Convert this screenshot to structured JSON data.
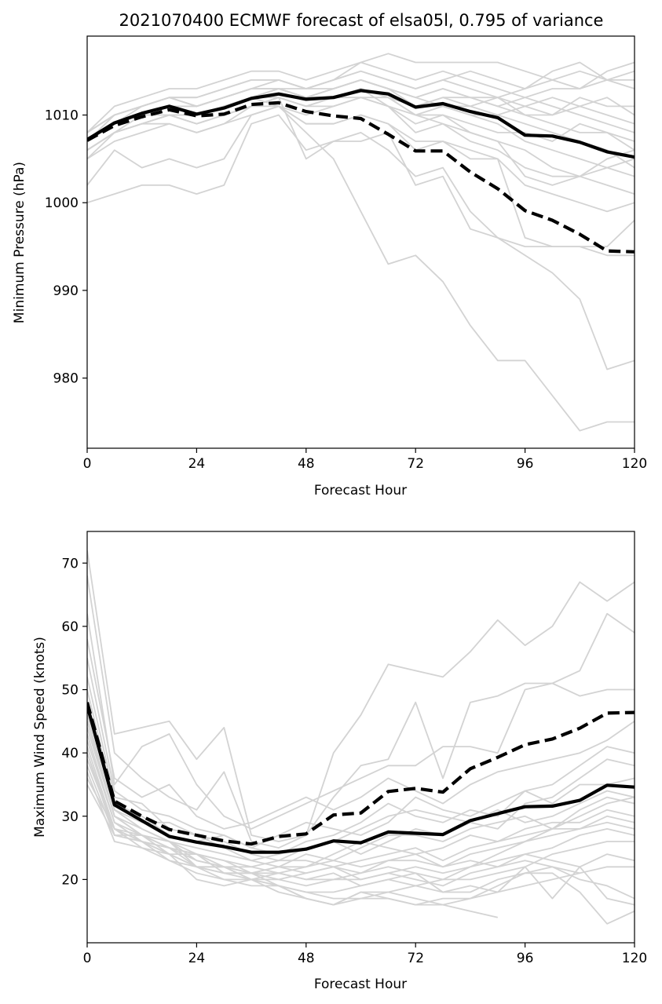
{
  "chart_data": [
    {
      "type": "line",
      "title": "2021070400 ECMWF forecast of elsa05l, 0.795 of variance",
      "xlabel": "Forecast Hour",
      "ylabel": "Minimum Pressure (hPa)",
      "xlim": [
        0,
        120
      ],
      "ylim": [
        972,
        1019
      ],
      "xticks": [
        0,
        24,
        48,
        72,
        96,
        120
      ],
      "yticks": [
        980,
        990,
        1000,
        1010
      ],
      "grid": false,
      "colors": {
        "member": "#d3d3d3",
        "mean": "#000000"
      },
      "x": [
        0,
        6,
        12,
        18,
        24,
        30,
        36,
        42,
        48,
        54,
        60,
        66,
        72,
        78,
        84,
        90,
        96,
        102,
        108,
        114,
        120
      ],
      "mean_series": [
        {
          "style": "solid",
          "values": [
            1007.2,
            1009.1,
            1010.2,
            1011.0,
            1010.1,
            1010.8,
            1011.9,
            1012.4,
            1011.8,
            1012.0,
            1012.8,
            1012.4,
            1010.9,
            1011.3,
            1010.4,
            1009.7,
            1007.7,
            1007.6,
            1006.9,
            1005.8,
            1005.2
          ]
        },
        {
          "style": "dashed",
          "values": [
            1007.1,
            1008.8,
            1009.8,
            1010.6,
            1009.9,
            1010.1,
            1011.2,
            1011.4,
            1010.4,
            1009.9,
            1009.6,
            1007.8,
            1005.9,
            1005.9,
            1003.5,
            1001.6,
            999.1,
            998.0,
            996.4,
            994.5,
            994.4
          ]
        }
      ],
      "members": [
        [
          1000,
          1001,
          1002,
          1002,
          1001,
          1002,
          1009,
          1010,
          1006,
          1007,
          1008,
          1006,
          1003,
          1004,
          999,
          996,
          994,
          992,
          989,
          981,
          982
        ],
        [
          1002,
          1006,
          1004,
          1005,
          1004,
          1005,
          1010,
          1011,
          1008,
          1005,
          999,
          993,
          994,
          991,
          986,
          982,
          982,
          978,
          974,
          975,
          975
        ],
        [
          1005,
          1008,
          1009,
          1010,
          1009,
          1010,
          1011,
          1012,
          1005,
          1007,
          1007,
          1008,
          1002,
          1003,
          997,
          996,
          995,
          995,
          995,
          994,
          994
        ],
        [
          1006,
          1008,
          1009,
          1010,
          1010,
          1011,
          1012,
          1011,
          1009,
          1009,
          1010,
          1009,
          1007,
          1007,
          1006,
          1005,
          996,
          995,
          995,
          995,
          998
        ],
        [
          1007,
          1009,
          1010,
          1011,
          1011,
          1012,
          1013,
          1013,
          1012,
          1013,
          1014,
          1013,
          1012,
          1011,
          1010,
          1009,
          1007,
          1006,
          1005,
          1004,
          1003
        ],
        [
          1007,
          1010,
          1011,
          1012,
          1012,
          1013,
          1014,
          1014,
          1013,
          1014,
          1016,
          1015,
          1014,
          1015,
          1014,
          1013,
          1012,
          1011,
          1010,
          1009,
          1008
        ],
        [
          1008,
          1011,
          1012,
          1013,
          1013,
          1014,
          1015,
          1015,
          1014,
          1015,
          1016,
          1017,
          1016,
          1016,
          1016,
          1016,
          1015,
          1014,
          1015,
          1014,
          1014
        ],
        [
          1008,
          1010,
          1011,
          1012,
          1011,
          1012,
          1013,
          1014,
          1013,
          1014,
          1015,
          1014,
          1013,
          1014,
          1013,
          1012,
          1011,
          1010,
          1011,
          1012,
          1010
        ],
        [
          1006,
          1008,
          1009,
          1010,
          1009,
          1010,
          1011,
          1012,
          1011,
          1011,
          1012,
          1012,
          1011,
          1012,
          1012,
          1011,
          1010,
          1009,
          1008,
          1008,
          1007
        ],
        [
          1007,
          1009,
          1010,
          1011,
          1010,
          1011,
          1012,
          1013,
          1012,
          1012,
          1013,
          1012,
          1010,
          1009,
          1008,
          1007,
          1006,
          1004,
          1003,
          1002,
          1001
        ],
        [
          1006,
          1008,
          1010,
          1010,
          1010,
          1011,
          1012,
          1013,
          1012,
          1013,
          1014,
          1013,
          1012,
          1013,
          1012,
          1012,
          1013,
          1014,
          1013,
          1015,
          1016
        ],
        [
          1007,
          1009,
          1011,
          1012,
          1011,
          1012,
          1013,
          1013,
          1013,
          1014,
          1015,
          1014,
          1013,
          1014,
          1015,
          1014,
          1013,
          1015,
          1016,
          1014,
          1013
        ],
        [
          1008,
          1010,
          1011,
          1012,
          1012,
          1013,
          1014,
          1014,
          1013,
          1013,
          1014,
          1013,
          1011,
          1012,
          1011,
          1010,
          1009,
          1008,
          1007,
          1006,
          1004
        ],
        [
          1006,
          1008,
          1009,
          1009,
          1008,
          1009,
          1010,
          1011,
          1010,
          1011,
          1012,
          1011,
          1008,
          1009,
          1007,
          1006,
          1004,
          1003,
          1003,
          1004,
          1005
        ],
        [
          1005,
          1007,
          1008,
          1009,
          1008,
          1009,
          1011,
          1011,
          1009,
          1009,
          1010,
          1009,
          1006,
          1007,
          1005,
          1005,
          1002,
          1001,
          1000,
          999,
          1000
        ],
        [
          1007,
          1009,
          1010,
          1011,
          1010,
          1011,
          1012,
          1012,
          1011,
          1012,
          1013,
          1012,
          1011,
          1011,
          1010,
          1010,
          1011,
          1012,
          1011,
          1010,
          1009
        ],
        [
          1008,
          1010,
          1011,
          1012,
          1011,
          1012,
          1013,
          1013,
          1012,
          1012,
          1013,
          1011,
          1010,
          1011,
          1011,
          1012,
          1010,
          1010,
          1012,
          1011,
          1011
        ],
        [
          1007,
          1009,
          1010,
          1011,
          1010,
          1011,
          1012,
          1013,
          1012,
          1012,
          1012,
          1011,
          1009,
          1010,
          1009,
          1008,
          1008,
          1007,
          1009,
          1008,
          1006
        ],
        [
          1006,
          1008,
          1009,
          1010,
          1009,
          1010,
          1011,
          1012,
          1011,
          1012,
          1013,
          1012,
          1010,
          1010,
          1008,
          1007,
          1003,
          1002,
          1003,
          1005,
          1006
        ],
        [
          1007,
          1009,
          1010,
          1011,
          1011,
          1012,
          1013,
          1013,
          1012,
          1013,
          1014,
          1013,
          1012,
          1013,
          1012,
          1011,
          1012,
          1013,
          1013,
          1014,
          1015
        ]
      ]
    },
    {
      "type": "line",
      "title": "",
      "xlabel": "Forecast Hour",
      "ylabel": "Maximum Wind Speed (knots)",
      "xlim": [
        0,
        120
      ],
      "ylim": [
        10,
        75
      ],
      "xticks": [
        0,
        24,
        48,
        72,
        96,
        120
      ],
      "yticks": [
        20,
        30,
        40,
        50,
        60,
        70
      ],
      "grid": false,
      "colors": {
        "member": "#d3d3d3",
        "mean": "#000000"
      },
      "x": [
        0,
        6,
        12,
        18,
        24,
        30,
        36,
        42,
        48,
        54,
        60,
        66,
        72,
        78,
        84,
        90,
        96,
        102,
        108,
        114,
        120
      ],
      "mean_series": [
        {
          "style": "solid",
          "values": [
            47.5,
            31.8,
            29.3,
            26.8,
            25.9,
            25.2,
            24.3,
            24.3,
            24.8,
            26.1,
            25.8,
            27.5,
            27.3,
            27.1,
            29.3,
            30.4,
            31.5,
            31.6,
            32.5,
            34.9,
            34.6
          ]
        },
        {
          "style": "dashed",
          "values": [
            48.0,
            32.4,
            30.0,
            27.9,
            27.0,
            26.1,
            25.6,
            26.8,
            27.2,
            30.2,
            30.5,
            33.9,
            34.4,
            33.8,
            37.5,
            39.3,
            41.3,
            42.2,
            43.9,
            46.3,
            46.4
          ]
        }
      ],
      "members": [
        [
          72,
          43,
          44,
          45,
          39,
          44,
          27,
          26,
          27,
          40,
          46,
          54,
          53,
          52,
          56,
          61,
          57,
          60,
          67,
          64,
          67
        ],
        [
          68,
          40,
          36,
          33,
          31,
          37,
          26,
          25,
          27,
          33,
          38,
          39,
          48,
          36,
          48,
          49,
          51,
          51,
          53,
          62,
          59
        ],
        [
          62,
          35,
          41,
          43,
          35,
          30,
          28,
          30,
          32,
          34,
          36,
          38,
          38,
          41,
          41,
          40,
          50,
          51,
          49,
          50,
          50
        ],
        [
          58,
          36,
          33,
          35,
          30,
          28,
          29,
          31,
          33,
          31,
          33,
          36,
          34,
          32,
          35,
          37,
          38,
          39,
          40,
          42,
          45
        ],
        [
          55,
          34,
          31,
          30,
          28,
          27,
          25,
          24,
          26,
          27,
          29,
          32,
          30,
          29,
          31,
          30,
          34,
          35,
          38,
          41,
          40
        ],
        [
          52,
          33,
          32,
          28,
          27,
          26,
          24,
          23,
          25,
          26,
          28,
          30,
          31,
          30,
          29,
          28,
          32,
          33,
          36,
          39,
          38
        ],
        [
          50,
          32,
          30,
          27,
          26,
          27,
          25,
          27,
          29,
          28,
          27,
          29,
          33,
          31,
          30,
          32,
          34,
          32,
          35,
          35,
          36
        ],
        [
          48,
          31,
          29,
          29,
          27,
          25,
          23,
          22,
          24,
          23,
          25,
          27,
          27,
          26,
          28,
          29,
          30,
          28,
          31,
          33,
          32
        ],
        [
          47,
          31,
          28,
          26,
          24,
          23,
          22,
          21,
          22,
          24,
          26,
          25,
          24,
          25,
          27,
          26,
          28,
          29,
          29,
          31,
          30
        ],
        [
          46,
          30,
          27,
          25,
          24,
          22,
          21,
          20,
          21,
          22,
          23,
          24,
          25,
          23,
          25,
          26,
          27,
          28,
          28,
          30,
          29
        ],
        [
          45,
          30,
          28,
          26,
          25,
          24,
          23,
          24,
          25,
          26,
          24,
          26,
          28,
          27,
          29,
          31,
          29,
          30,
          32,
          34,
          33
        ],
        [
          44,
          30,
          27,
          26,
          23,
          22,
          22,
          23,
          23,
          22,
          21,
          23,
          24,
          22,
          24,
          25,
          26,
          27,
          28,
          29,
          28
        ],
        [
          43,
          29,
          27,
          25,
          24,
          23,
          21,
          22,
          21,
          22,
          20,
          21,
          22,
          21,
          22,
          23,
          24,
          25,
          27,
          28,
          27
        ],
        [
          42,
          29,
          26,
          25,
          23,
          22,
          20,
          21,
          20,
          21,
          19,
          20,
          21,
          20,
          20,
          21,
          22,
          24,
          25,
          26,
          26
        ],
        [
          41,
          28,
          27,
          24,
          24,
          21,
          21,
          22,
          22,
          23,
          22,
          23,
          23,
          22,
          23,
          22,
          24,
          23,
          22,
          24,
          23
        ],
        [
          40,
          28,
          26,
          24,
          22,
          22,
          20,
          20,
          19,
          20,
          20,
          21,
          20,
          19,
          21,
          22,
          23,
          22,
          20,
          19,
          17
        ],
        [
          40,
          27,
          26,
          23,
          22,
          21,
          21,
          21,
          20,
          20,
          21,
          22,
          21,
          18,
          18,
          20,
          21,
          21,
          18,
          13,
          15
        ],
        [
          39,
          28,
          25,
          23,
          21,
          20,
          20,
          19,
          18,
          18,
          19,
          20,
          19,
          18,
          19,
          18,
          22,
          17,
          22,
          17,
          16
        ],
        [
          38,
          27,
          26,
          24,
          22,
          20,
          19,
          19,
          17,
          16,
          18,
          18,
          17,
          16,
          15,
          14,
          null,
          null,
          null,
          null,
          null
        ],
        [
          37,
          26,
          25,
          24,
          20,
          19,
          20,
          18,
          17,
          16,
          18,
          17,
          16,
          16,
          17,
          19,
          21,
          22,
          21,
          null,
          null
        ],
        [
          36,
          28,
          26,
          25,
          22,
          21,
          20,
          19,
          18,
          17,
          17,
          17,
          16,
          17,
          17,
          18,
          19,
          20,
          21,
          22,
          22
        ],
        [
          35,
          27,
          27,
          26,
          22,
          22,
          21,
          19,
          17,
          16,
          17,
          18,
          19,
          20,
          22,
          24,
          26,
          28,
          30,
          32,
          33
        ]
      ]
    }
  ]
}
